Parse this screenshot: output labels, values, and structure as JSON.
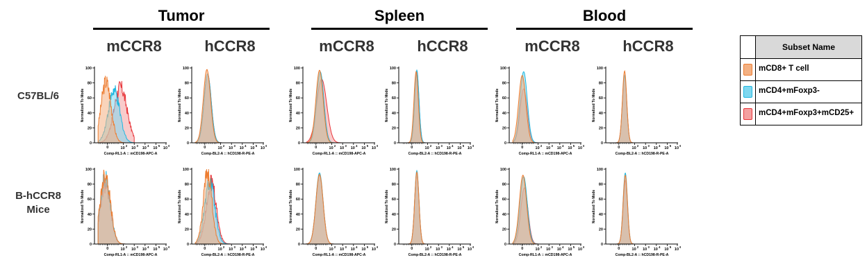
{
  "groups": [
    {
      "title": "Tumor"
    },
    {
      "title": "Spleen"
    },
    {
      "title": "Blood"
    }
  ],
  "columns": [
    "mCCR8",
    "hCCR8",
    "mCCR8",
    "hCCR8",
    "mCCR8",
    "hCCR8"
  ],
  "rows": [
    {
      "label_line1": "C57BL/6",
      "label_line2": ""
    },
    {
      "label_line1": "B-hCCR8",
      "label_line2": "Mice"
    }
  ],
  "legend": {
    "header": "Subset Name",
    "items": [
      {
        "name": "mCD8+ T cell",
        "fill": "#f4b183",
        "stroke": "#ed7d31"
      },
      {
        "name": "mCD4+mFoxp3-",
        "fill": "#7fd8f0",
        "stroke": "#1fb7e0"
      },
      {
        "name": "mCD4+mFoxp3+mCD25+",
        "fill": "#f4a0a0",
        "stroke": "#e8353a"
      }
    ]
  },
  "chart_data": {
    "type": "area",
    "ylabel": "Normalized To Mode",
    "y_ticks": [
      "0",
      "20",
      "40",
      "60",
      "80",
      "100"
    ],
    "x_tick_exponents": [
      "2",
      "3",
      "4",
      "5",
      "6"
    ],
    "x_tick_prefix": "10",
    "x_tick_zero": "0",
    "xlabels": {
      "mCCR8": "Comp-RL1-A :: mCD198-APC-A",
      "hCCR8": "Comp-BL2-A :: hCD198-R-PE-A"
    },
    "ylim": [
      0,
      100
    ],
    "x_scale": "biexponential",
    "panels": [
      {
        "row": 0,
        "col": 0,
        "series": [
          {
            "subset": 0,
            "center": 0.16,
            "width": 0.07,
            "peak": 85,
            "noise": 1
          },
          {
            "subset": 1,
            "center": 0.27,
            "width": 0.08,
            "peak": 72,
            "noise": 1
          },
          {
            "subset": 2,
            "center": 0.36,
            "width": 0.09,
            "peak": 77,
            "noise": 1
          }
        ]
      },
      {
        "row": 0,
        "col": 1,
        "series": [
          {
            "subset": 0,
            "center": 0.21,
            "width": 0.05,
            "peak": 98,
            "noise": 0
          },
          {
            "subset": 1,
            "center": 0.22,
            "width": 0.05,
            "peak": 92,
            "noise": 0
          },
          {
            "subset": 2,
            "center": 0.22,
            "width": 0.05,
            "peak": 92,
            "noise": 0
          }
        ]
      },
      {
        "row": 0,
        "col": 2,
        "series": [
          {
            "subset": 0,
            "center": 0.23,
            "width": 0.05,
            "peak": 97,
            "noise": 0
          },
          {
            "subset": 1,
            "center": 0.24,
            "width": 0.05,
            "peak": 95,
            "noise": 0
          },
          {
            "subset": 2,
            "center": 0.26,
            "width": 0.07,
            "peak": 85,
            "noise": 0
          }
        ]
      },
      {
        "row": 0,
        "col": 3,
        "series": [
          {
            "subset": 0,
            "center": 0.24,
            "width": 0.03,
            "peak": 95,
            "noise": 0
          },
          {
            "subset": 1,
            "center": 0.25,
            "width": 0.03,
            "peak": 97,
            "noise": 0
          },
          {
            "subset": 2,
            "center": 0.25,
            "width": 0.03,
            "peak": 95,
            "noise": 0
          }
        ]
      },
      {
        "row": 0,
        "col": 4,
        "series": [
          {
            "subset": 0,
            "center": 0.18,
            "width": 0.05,
            "peak": 90,
            "noise": 0
          },
          {
            "subset": 1,
            "center": 0.2,
            "width": 0.05,
            "peak": 95,
            "noise": 0
          },
          {
            "subset": 2,
            "center": 0.2,
            "width": 0.05,
            "peak": 72,
            "noise": 0
          }
        ]
      },
      {
        "row": 0,
        "col": 5,
        "series": [
          {
            "subset": 0,
            "center": 0.26,
            "width": 0.03,
            "peak": 96,
            "noise": 0
          },
          {
            "subset": 1,
            "center": 0.26,
            "width": 0.03,
            "peak": 90,
            "noise": 0
          },
          {
            "subset": 2,
            "center": 0.26,
            "width": 0.03,
            "peak": 90,
            "noise": 0
          }
        ]
      },
      {
        "row": 1,
        "col": 0,
        "series": [
          {
            "subset": 0,
            "center": 0.15,
            "width": 0.07,
            "peak": 98,
            "noise": 1
          },
          {
            "subset": 1,
            "center": 0.15,
            "width": 0.07,
            "peak": 92,
            "noise": 1
          },
          {
            "subset": 2,
            "center": 0.15,
            "width": 0.07,
            "peak": 82,
            "noise": 1
          }
        ]
      },
      {
        "row": 1,
        "col": 1,
        "series": [
          {
            "subset": 0,
            "center": 0.22,
            "width": 0.06,
            "peak": 98,
            "noise": 1
          },
          {
            "subset": 1,
            "center": 0.25,
            "width": 0.07,
            "peak": 86,
            "noise": 1
          },
          {
            "subset": 2,
            "center": 0.27,
            "width": 0.07,
            "peak": 86,
            "noise": 1
          }
        ]
      },
      {
        "row": 1,
        "col": 2,
        "series": [
          {
            "subset": 0,
            "center": 0.23,
            "width": 0.05,
            "peak": 93,
            "noise": 0
          },
          {
            "subset": 1,
            "center": 0.23,
            "width": 0.05,
            "peak": 95,
            "noise": 0
          },
          {
            "subset": 2,
            "center": 0.23,
            "width": 0.05,
            "peak": 92,
            "noise": 0
          }
        ]
      },
      {
        "row": 1,
        "col": 3,
        "series": [
          {
            "subset": 0,
            "center": 0.25,
            "width": 0.03,
            "peak": 96,
            "noise": 0
          },
          {
            "subset": 1,
            "center": 0.25,
            "width": 0.03,
            "peak": 98,
            "noise": 0
          },
          {
            "subset": 2,
            "center": 0.25,
            "width": 0.03,
            "peak": 95,
            "noise": 0
          }
        ]
      },
      {
        "row": 1,
        "col": 4,
        "series": [
          {
            "subset": 0,
            "center": 0.19,
            "width": 0.05,
            "peak": 92,
            "noise": 0
          },
          {
            "subset": 1,
            "center": 0.2,
            "width": 0.05,
            "peak": 90,
            "noise": 0
          },
          {
            "subset": 2,
            "center": 0.21,
            "width": 0.05,
            "peak": 75,
            "noise": 0
          }
        ]
      },
      {
        "row": 1,
        "col": 5,
        "series": [
          {
            "subset": 0,
            "center": 0.27,
            "width": 0.03,
            "peak": 92,
            "noise": 0
          },
          {
            "subset": 1,
            "center": 0.27,
            "width": 0.03,
            "peak": 95,
            "noise": 0
          },
          {
            "subset": 2,
            "center": 0.27,
            "width": 0.03,
            "peak": 85,
            "noise": 0
          }
        ]
      }
    ]
  }
}
